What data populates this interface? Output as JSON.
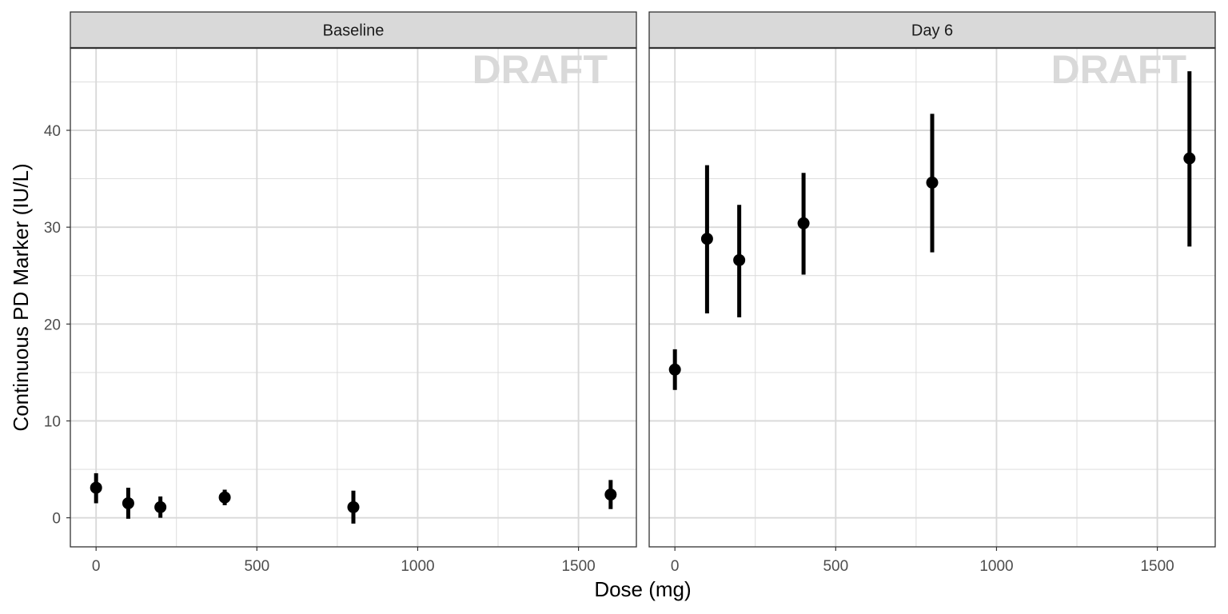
{
  "chart_data": {
    "type": "scatter",
    "subtype": "point-errorbar-faceted",
    "xlabel": "Dose (mg)",
    "ylabel": "Continuous PD Marker (IU/L)",
    "xlim": [
      -80,
      1680
    ],
    "ylim": [
      -3,
      48.5
    ],
    "x_ticks": [
      0,
      500,
      1000,
      1500
    ],
    "y_ticks": [
      0,
      10,
      20,
      30,
      40
    ],
    "grid": true,
    "watermark": "DRAFT",
    "colors": {
      "point": "#000000",
      "errorbar": "#000000",
      "grid": "#d9d9d9",
      "strip_bg": "#d9d9d9",
      "panel_border": "#333333"
    },
    "panels": [
      {
        "label": "Baseline",
        "points": [
          {
            "x": 0,
            "y": 3.1,
            "lo": 1.5,
            "hi": 4.6
          },
          {
            "x": 100,
            "y": 1.5,
            "lo": -0.1,
            "hi": 3.1
          },
          {
            "x": 200,
            "y": 1.1,
            "lo": 0.0,
            "hi": 2.2
          },
          {
            "x": 400,
            "y": 2.1,
            "lo": 1.3,
            "hi": 2.9
          },
          {
            "x": 800,
            "y": 1.1,
            "lo": -0.6,
            "hi": 2.8
          },
          {
            "x": 1600,
            "y": 2.4,
            "lo": 0.9,
            "hi": 3.9
          }
        ]
      },
      {
        "label": "Day 6",
        "points": [
          {
            "x": 0,
            "y": 15.3,
            "lo": 13.2,
            "hi": 17.4
          },
          {
            "x": 100,
            "y": 28.8,
            "lo": 21.1,
            "hi": 36.4
          },
          {
            "x": 200,
            "y": 26.6,
            "lo": 20.7,
            "hi": 32.3
          },
          {
            "x": 400,
            "y": 30.4,
            "lo": 25.1,
            "hi": 35.6
          },
          {
            "x": 800,
            "y": 34.6,
            "lo": 27.4,
            "hi": 41.7
          },
          {
            "x": 1600,
            "y": 37.1,
            "lo": 28.0,
            "hi": 46.1
          }
        ]
      }
    ]
  }
}
